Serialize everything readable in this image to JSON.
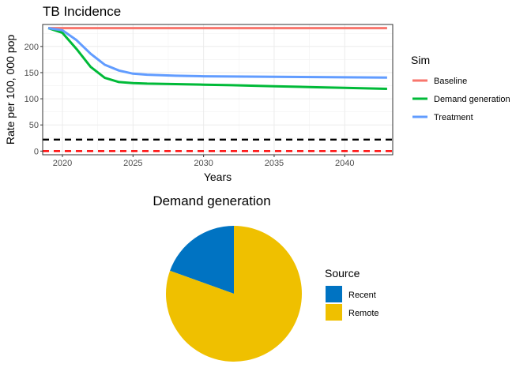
{
  "chart_data": [
    {
      "type": "line",
      "title": "TB Incidence",
      "xlabel": "Years",
      "ylabel": "Rate per 100, 000 pop",
      "xlim": [
        2018.6,
        2043.4
      ],
      "ylim": [
        -7,
        242
      ],
      "xticks": [
        2020,
        2025,
        2030,
        2035,
        2040
      ],
      "yticks": [
        0,
        50,
        100,
        150,
        200
      ],
      "grid": true,
      "legend_title": "Sim",
      "legend_position": "right",
      "series": [
        {
          "name": "Baseline",
          "color": "#f8766d",
          "x": [
            2019,
            2020,
            2021,
            2022,
            2023,
            2024,
            2025,
            2026,
            2028,
            2030,
            2032,
            2035,
            2038,
            2040,
            2043
          ],
          "y": [
            235,
            235,
            235,
            235,
            235,
            235,
            235,
            235,
            235,
            235,
            235,
            235,
            235,
            235,
            235
          ]
        },
        {
          "name": "Demand generation",
          "color": "#00ba38",
          "x": [
            2019,
            2020,
            2021,
            2022,
            2023,
            2024,
            2025,
            2026,
            2028,
            2030,
            2032,
            2035,
            2038,
            2040,
            2043
          ],
          "y": [
            235,
            226,
            195,
            161,
            140,
            132,
            130,
            129,
            128,
            127,
            126,
            124,
            122,
            121,
            119
          ]
        },
        {
          "name": "Treatment",
          "color": "#619cff",
          "x": [
            2019,
            2020,
            2021,
            2022,
            2023,
            2024,
            2025,
            2026,
            2028,
            2030,
            2032,
            2035,
            2038,
            2040,
            2043
          ],
          "y": [
            235,
            231,
            212,
            186,
            165,
            154,
            148,
            146,
            144,
            143,
            142.5,
            142,
            141.5,
            141,
            140.5
          ]
        }
      ],
      "reference_lines": [
        {
          "y": 22,
          "color": "#000000",
          "style": "dashed"
        },
        {
          "y": 0,
          "color": "#ff0000",
          "style": "dashed"
        }
      ]
    },
    {
      "type": "pie",
      "title": "Demand generation",
      "legend_title": "Source",
      "legend_position": "right",
      "slices": [
        {
          "label": "Recent",
          "value": 19.5,
          "color": "#0073c2"
        },
        {
          "label": "Remote",
          "value": 80.5,
          "color": "#efc000"
        }
      ]
    }
  ]
}
